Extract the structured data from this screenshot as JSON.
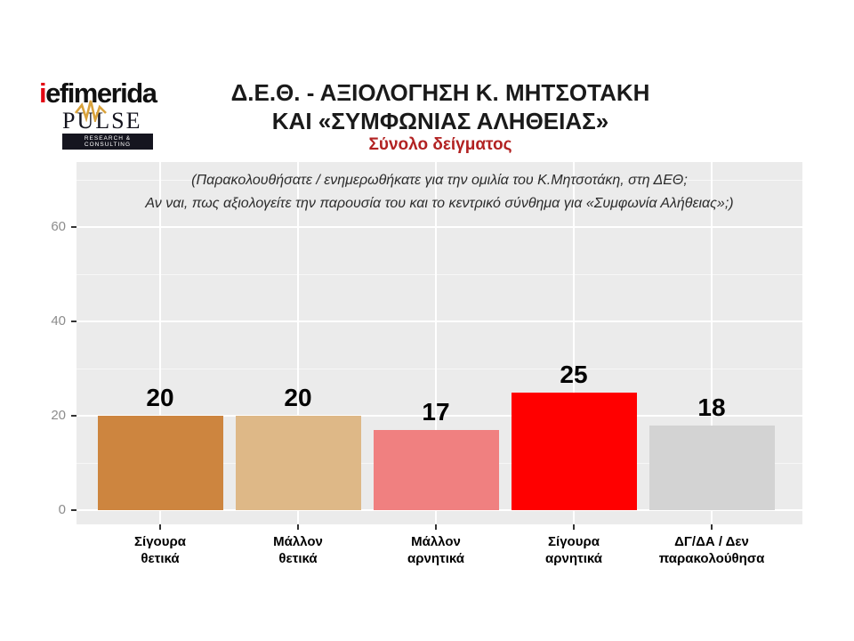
{
  "header": {
    "logo": {
      "brand_i": "i",
      "brand_rest": "efimerida",
      "pulse": "PULSE",
      "tagline": "RESEARCH & CONSULTING"
    },
    "title_line1": "Δ.Ε.Θ. - ΑΞΙΟΛΟΓΗΣΗ Κ. ΜΗΤΣΟΤΑΚΗ",
    "title_line2": "ΚΑΙ «ΣΥΜΦΩΝΙΑΣ ΑΛΗΘΕΙΑΣ»",
    "subtitle": "Σύνολο δείγματος"
  },
  "chart_data": {
    "type": "bar",
    "title": "Δ.Ε.Θ. - ΑΞΙΟΛΟΓΗΣΗ Κ. ΜΗΤΣΟΤΑΚΗ ΚΑΙ «ΣΥΜΦΩΝΙΑΣ ΑΛΗΘΕΙΑΣ»",
    "subtitle": "Σύνολο δείγματος",
    "annotation_line1": "(Παρακολουθήσατε / ενημερωθήκατε για την ομιλία του Κ.Μητσοτάκη, στη ΔΕΘ;",
    "annotation_line2": "Αν ναι, πως αξιολογείτε την παρουσία του και το κεντρικό σύνθημα για «Συμφωνία Αλήθειας»;)",
    "categories": [
      [
        "Σίγουρα",
        "θετικά"
      ],
      [
        "Μάλλον",
        "θετικά"
      ],
      [
        "Μάλλον",
        "αρνητικά"
      ],
      [
        "Σίγουρα",
        "αρνητικά"
      ],
      [
        "ΔΓ/ΔΑ / Δεν",
        "παρακολούθησα"
      ]
    ],
    "values": [
      20,
      20,
      17,
      25,
      18
    ],
    "bar_colors": [
      "#CD853F",
      "#DEB887",
      "#F08080",
      "#FF0000",
      "#D3D3D3"
    ],
    "y_ticks_major": [
      0,
      20,
      40,
      60
    ],
    "y_ticks_minor": [
      10,
      30,
      50,
      70
    ],
    "ylim": [
      0,
      73
    ],
    "xlabel": "",
    "ylabel": "",
    "grid": true,
    "legend": false,
    "panel_background": "#EBEBEB",
    "gridline_color": "#FFFFFF",
    "axis_text_color": "#8C8C8C",
    "value_label_color": "#000000",
    "category_label_color": "#000000"
  },
  "colors": {
    "subtitle_red": "#B22222",
    "logo_red": "#E30613",
    "pulse_gold": "#D9A23B",
    "title_black": "#1A1A1A"
  }
}
